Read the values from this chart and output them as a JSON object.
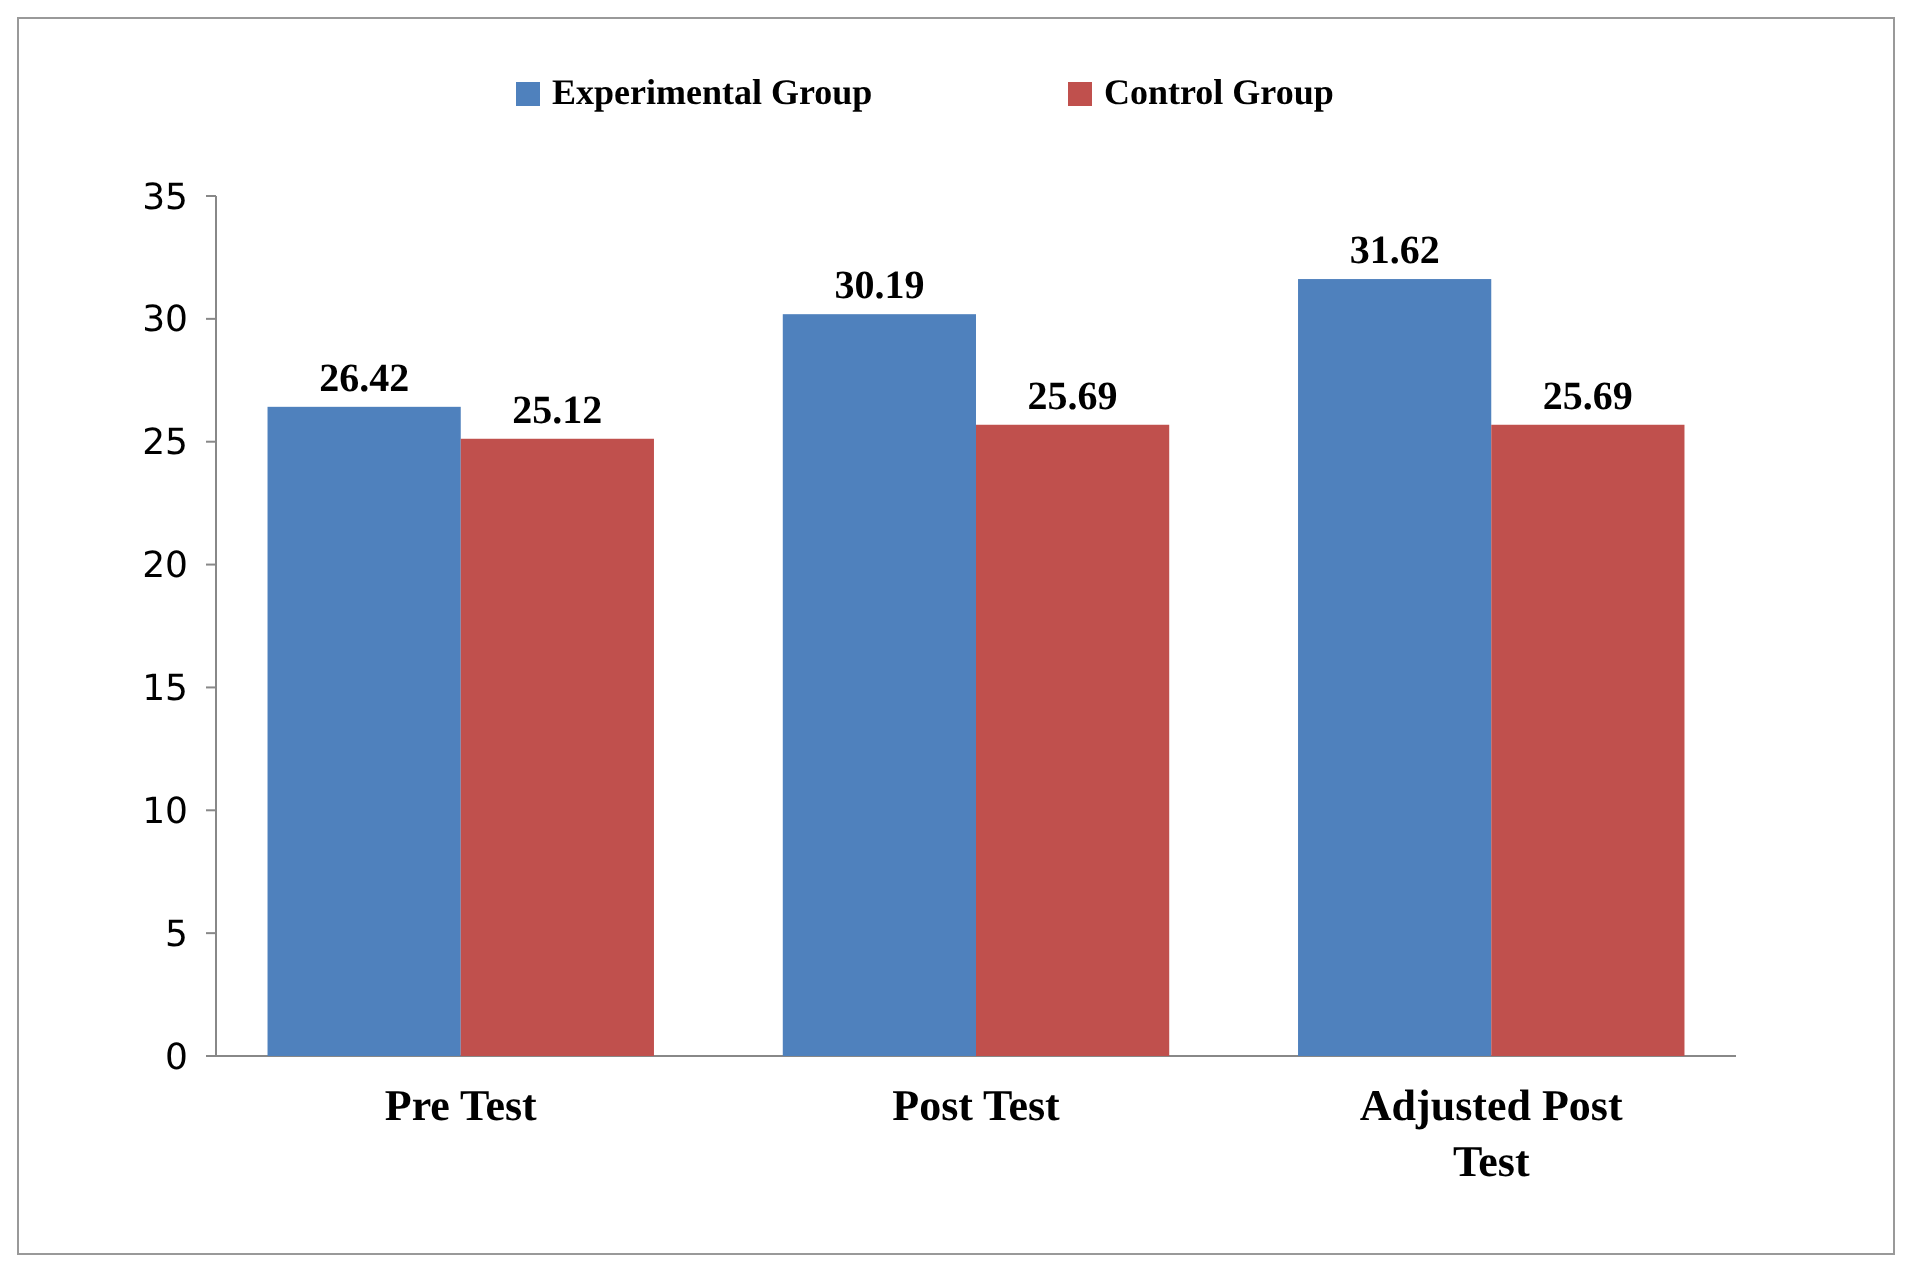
{
  "chart_data": {
    "type": "bar",
    "categories": [
      "Pre Test",
      "Post Test",
      "Adjusted Post Test"
    ],
    "series": [
      {
        "name": "Experimental Group",
        "color": "#4f81bd",
        "values": [
          26.42,
          30.19,
          31.62
        ]
      },
      {
        "name": "Control Group",
        "color": "#c0504d",
        "values": [
          25.12,
          25.69,
          25.69
        ]
      }
    ],
    "ylim": [
      0,
      35
    ],
    "yticks": [
      0,
      5,
      10,
      15,
      20,
      25,
      30,
      35
    ],
    "data_labels": true,
    "legend": "top",
    "grid": false
  }
}
